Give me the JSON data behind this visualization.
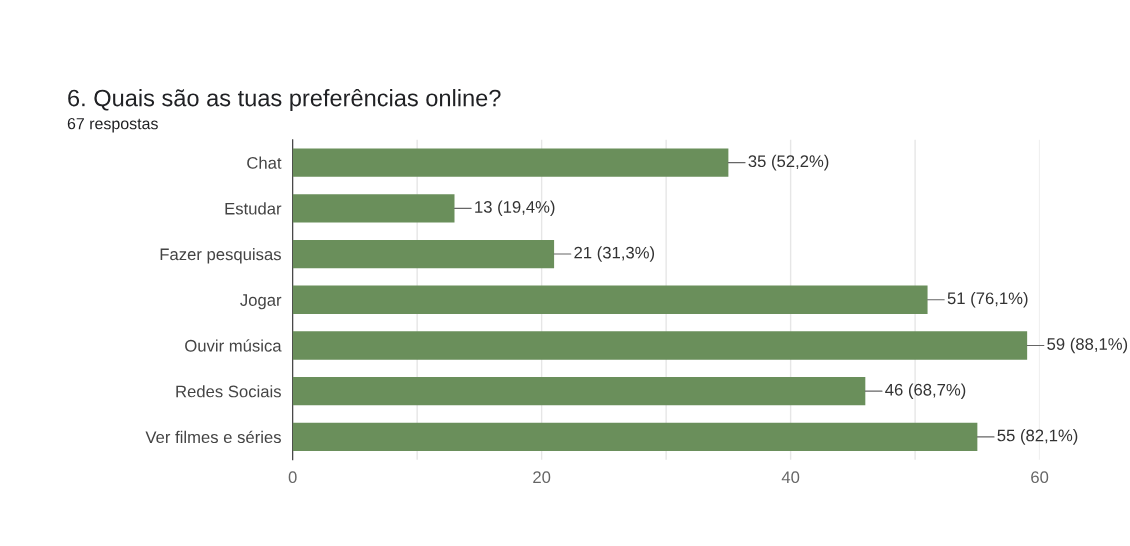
{
  "chart_data": {
    "type": "bar",
    "orientation": "horizontal",
    "title": "6. Quais são as tuas preferências online?",
    "subtitle": "67 respostas",
    "categories": [
      "Chat",
      "Estudar",
      "Fazer pesquisas",
      "Jogar",
      "Ouvir música",
      "Redes Sociais",
      "Ver filmes e séries"
    ],
    "values": [
      35,
      13,
      21,
      51,
      59,
      46,
      55
    ],
    "value_labels": [
      "35 (52,2%)",
      "13 (19,4%)",
      "21 (31,3%)",
      "51 (76,1%)",
      "59 (88,1%)",
      "46 (68,7%)",
      "55 (82,1%)"
    ],
    "color": "#6a8f5b",
    "xlim": [
      0,
      60
    ],
    "xticks": [
      0,
      {
        "value": 10,
        "label": null
      },
      20,
      {
        "value": 30,
        "label": null
      },
      40,
      {
        "value": 50,
        "label": null
      },
      60
    ],
    "grid": "x",
    "legend": false
  }
}
